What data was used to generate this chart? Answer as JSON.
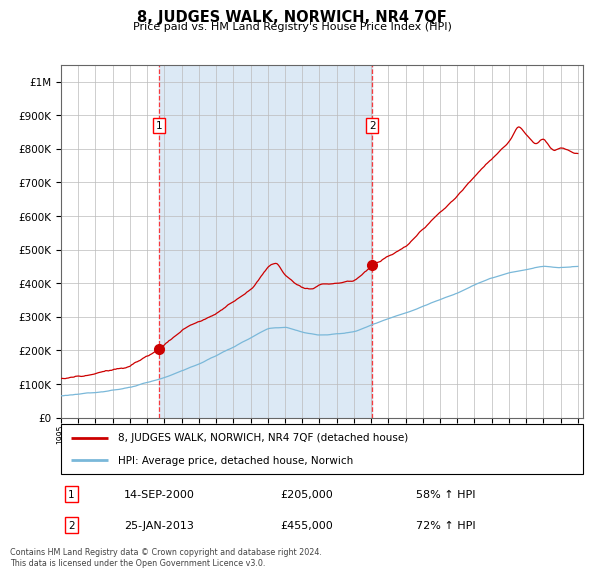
{
  "title": "8, JUDGES WALK, NORWICH, NR4 7QF",
  "subtitle": "Price paid vs. HM Land Registry's House Price Index (HPI)",
  "legend_line1": "8, JUDGES WALK, NORWICH, NR4 7QF (detached house)",
  "legend_line2": "HPI: Average price, detached house, Norwich",
  "sale1_date": "14-SEP-2000",
  "sale1_price": 205000,
  "sale1_pct": "58% ↑ HPI",
  "sale2_date": "25-JAN-2013",
  "sale2_price": 455000,
  "sale2_pct": "72% ↑ HPI",
  "footnote": "Contains HM Land Registry data © Crown copyright and database right 2024.\nThis data is licensed under the Open Government Licence v3.0.",
  "hpi_color": "#7ab8d9",
  "price_color": "#cc0000",
  "sale_marker_color": "#cc0000",
  "shading_color": "#dce9f5",
  "grid_color": "#bbbbbb",
  "axis_bg": "#ffffff",
  "ylim_max": 1050000,
  "ylim_min": 0,
  "sale1_year": 2000.71,
  "sale2_year": 2013.07
}
